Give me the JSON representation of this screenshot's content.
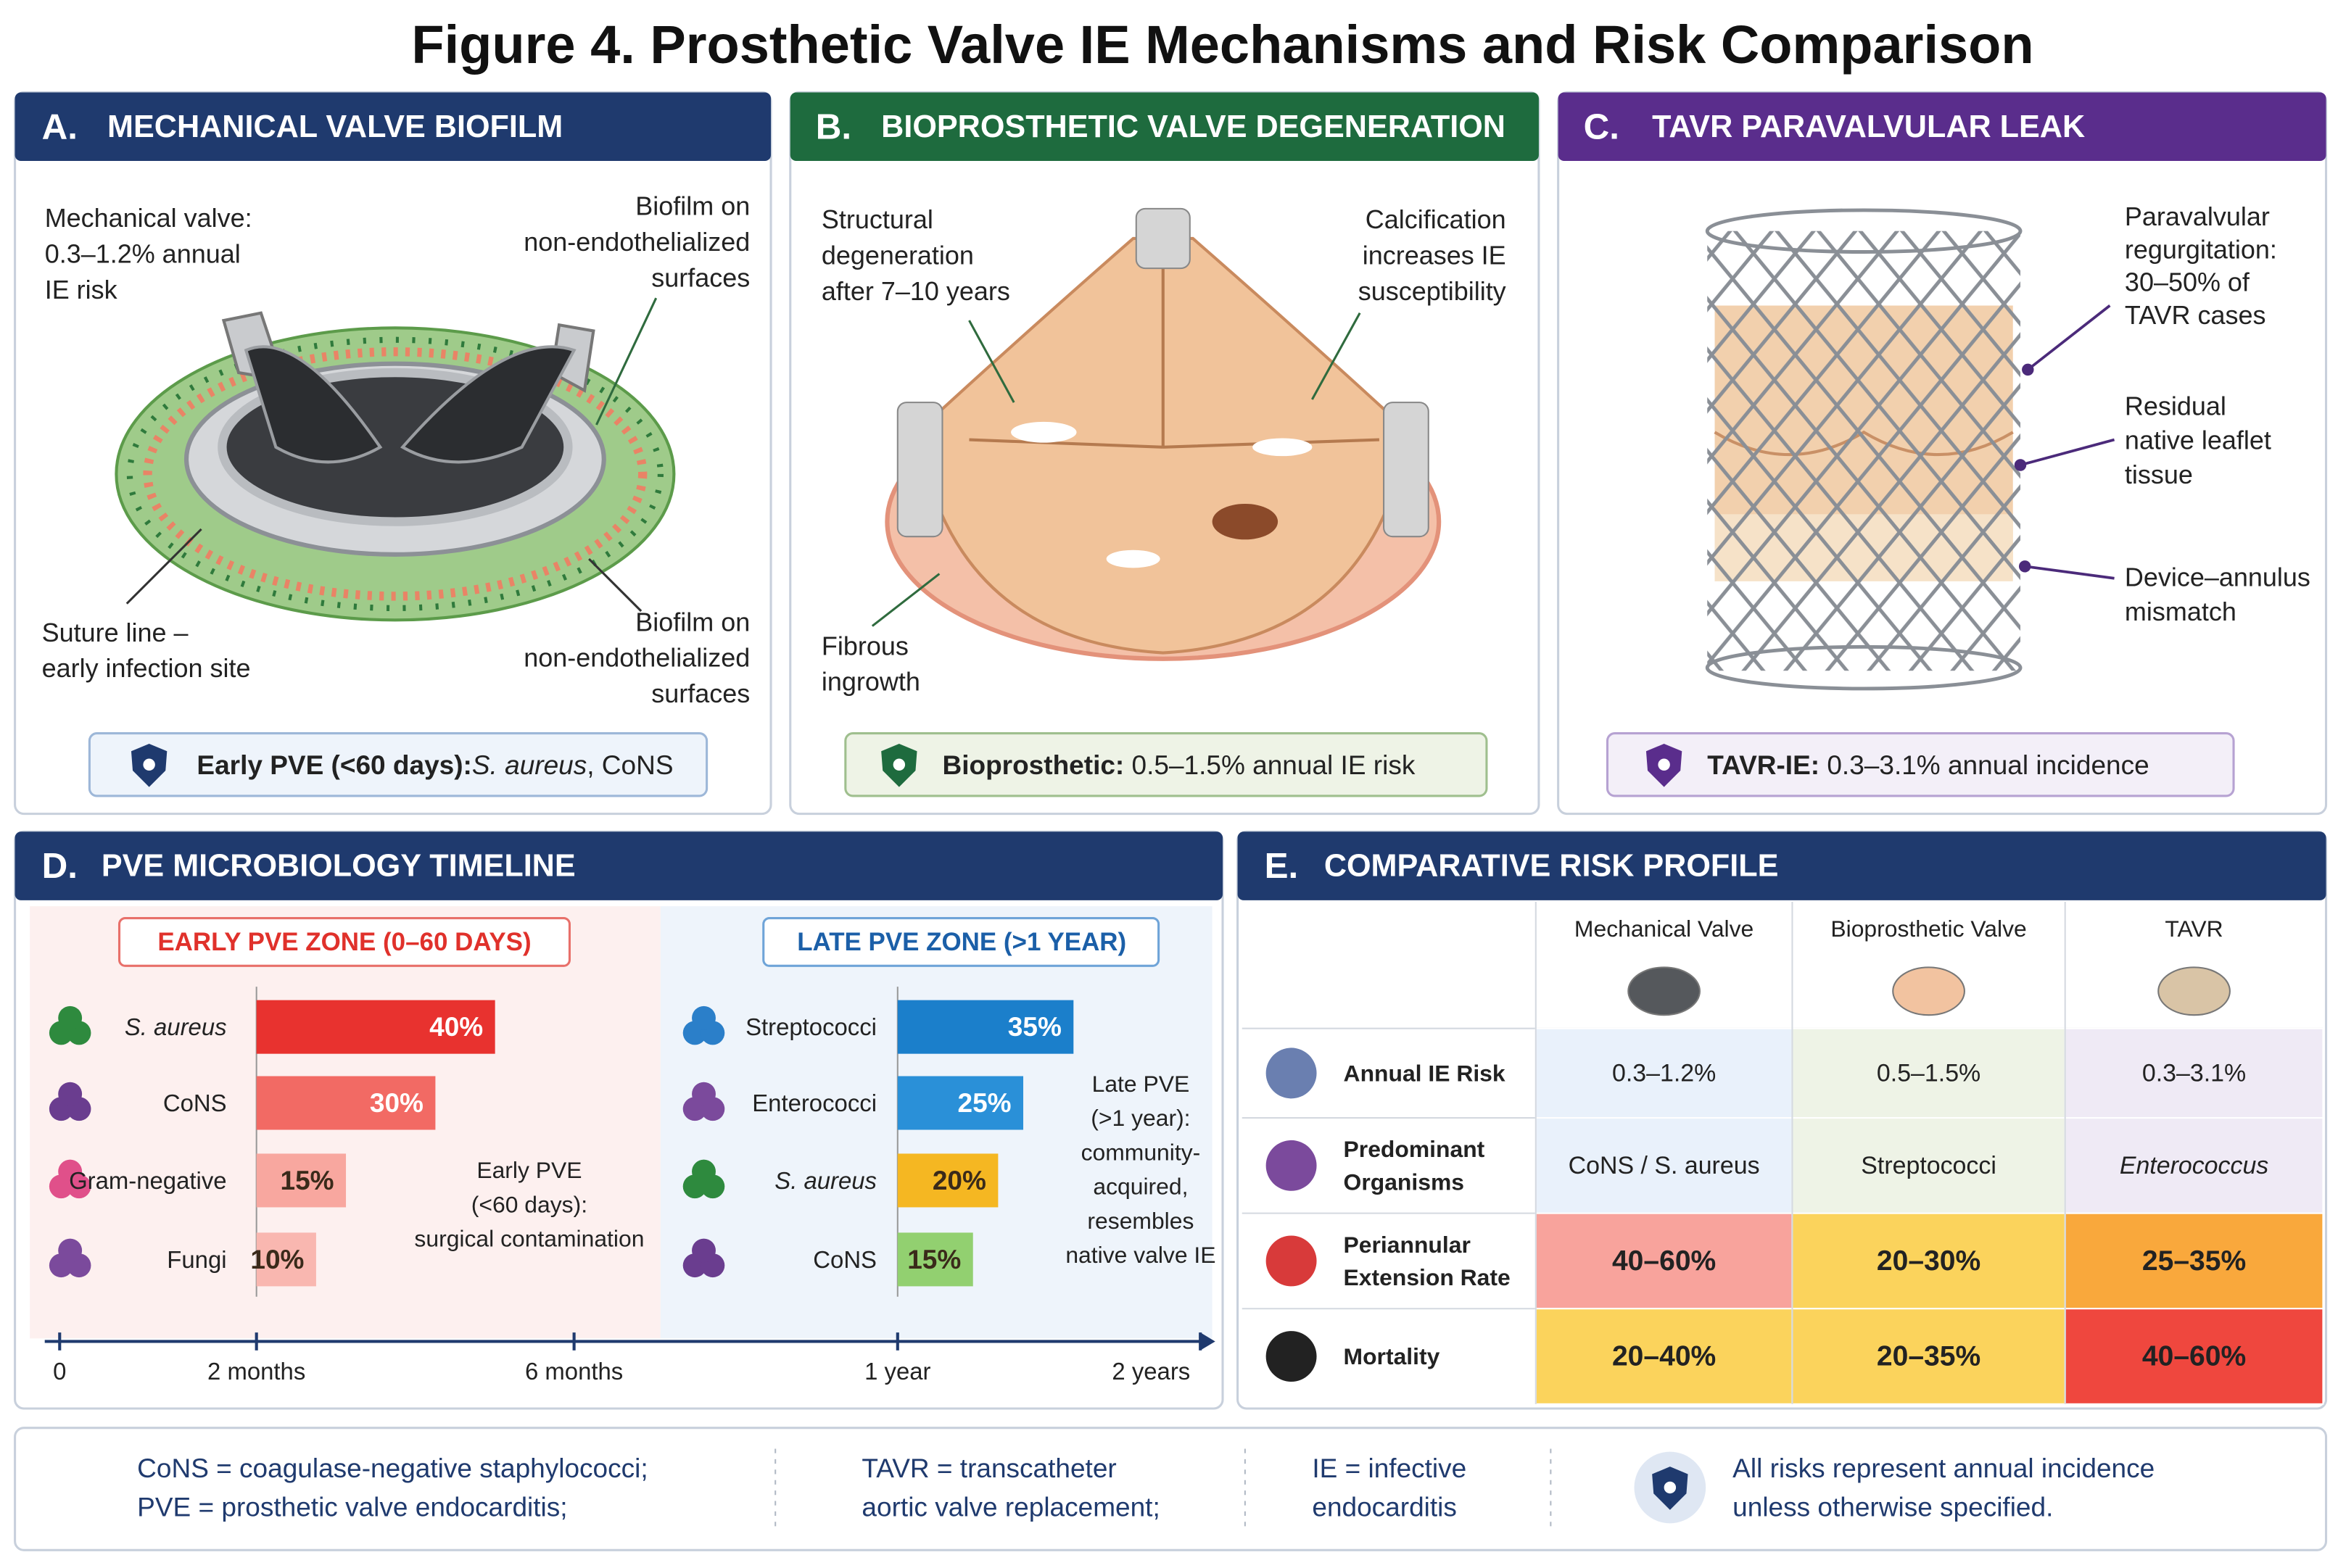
{
  "title": "Figure 4. Prosthetic Valve IE Mechanisms and Risk Comparison",
  "panel_a": {
    "letter": "A.",
    "title": "MECHANICAL VALVE BIOFILM",
    "callouts": [
      {
        "lines": [
          "Mechanical valve:",
          "0.3–1.2% annual",
          "IE risk"
        ]
      },
      {
        "lines": [
          "Biofilm on",
          "non-endothelialized",
          "surfaces"
        ]
      },
      {
        "lines": [
          "Suture line –",
          "early infection site"
        ]
      },
      {
        "lines": [
          "Biofilm on",
          "non-endothelialized",
          "surfaces"
        ]
      }
    ],
    "badge": {
      "bold": "Early PVE (<60 days):",
      "italic": "S. aureus",
      "rest": ", CoNS"
    }
  },
  "panel_b": {
    "letter": "B.",
    "title": "BIOPROSTHETIC VALVE DEGENERATION",
    "callouts": [
      {
        "lines": [
          "Structural",
          "degeneration",
          "after 7–10 years"
        ]
      },
      {
        "lines": [
          "Calcification",
          "increases IE",
          "susceptibility"
        ]
      },
      {
        "lines": [
          "Fibrous",
          "ingrowth"
        ]
      }
    ],
    "badge": {
      "bold": "Bioprosthetic:",
      "rest": " 0.5–1.5% annual IE risk"
    }
  },
  "panel_c": {
    "letter": "C.",
    "title": "TAVR PARAVALVULAR LEAK",
    "callouts": [
      {
        "lines": [
          "Paravalvular",
          "regurgitation:",
          "30–50% of",
          "TAVR cases"
        ]
      },
      {
        "lines": [
          "Residual",
          "native leaflet",
          "tissue"
        ]
      },
      {
        "lines": [
          "Device–annulus",
          "mismatch"
        ]
      }
    ],
    "badge": {
      "bold": "TAVR-IE:",
      "rest": " 0.3–3.1% annual incidence"
    }
  },
  "panel_d": {
    "letter": "D.",
    "title": "PVE MICROBIOLOGY TIMELINE",
    "early": {
      "zone": "EARLY PVE ZONE (0–60 DAYS)",
      "bars": [
        {
          "name": "S. aureus",
          "value": 40,
          "value_label": "40%",
          "color": "#e8322f"
        },
        {
          "name": "CoNS",
          "value": 30,
          "value_label": "30%",
          "color": "#f26a64"
        },
        {
          "name": "Gram-negative",
          "value": 15,
          "value_label": "15%",
          "color": "#f8a79f"
        },
        {
          "name": "Fungi",
          "value": 10,
          "value_label": "10%",
          "color": "#f9b7b0"
        }
      ],
      "note": [
        "Early PVE",
        "(<60 days):",
        "surgical contamination"
      ]
    },
    "late": {
      "zone": "LATE PVE ZONE (>1 YEAR)",
      "bars": [
        {
          "name": "Streptococci",
          "value": 35,
          "value_label": "35%",
          "color": "#1b7fcb"
        },
        {
          "name": "Enterococci",
          "value": 25,
          "value_label": "25%",
          "color": "#2a90d8"
        },
        {
          "name": "S. aureus",
          "value": 20,
          "value_label": "20%",
          "color": "#f5b722"
        },
        {
          "name": "CoNS",
          "value": 15,
          "value_label": "15%",
          "color": "#92d070"
        }
      ],
      "note": [
        "Late PVE",
        "(>1 year):",
        "community-",
        "acquired,",
        "resembles",
        "native valve IE"
      ]
    },
    "axis_labels": [
      "0",
      "2 months",
      "6 months",
      "1 year",
      "2 years"
    ]
  },
  "panel_e": {
    "letter": "E.",
    "title": "COMPARATIVE RISK PROFILE",
    "columns": [
      "Mechanical Valve",
      "Bioprosthetic Valve",
      "TAVR"
    ],
    "rows": [
      {
        "label": [
          "Annual IE Risk"
        ],
        "cells": [
          "0.3–1.2%",
          "0.5–1.5%",
          "0.3–3.1%"
        ]
      },
      {
        "label": [
          "Predominant",
          "Organisms"
        ],
        "cells": [
          "CoNS / S. aureus",
          "Streptococci",
          "Enterococcus"
        ]
      },
      {
        "label": [
          "Periannular",
          "Extension Rate"
        ],
        "cells": [
          "40–60%",
          "20–30%",
          "25–35%"
        ]
      },
      {
        "label": [
          "Mortality"
        ],
        "cells": [
          "20–40%",
          "20–35%",
          "40–60%"
        ]
      }
    ]
  },
  "footer": [
    [
      "CoNS = coagulase-negative staphylococci;",
      "PVE = prosthetic valve endocarditis;"
    ],
    [
      "TAVR = transcatheter",
      "aortic valve replacement;"
    ],
    [
      "IE = infective",
      "endocarditis"
    ],
    [
      "All risks represent annual incidence",
      "unless otherwise specified."
    ]
  ]
}
